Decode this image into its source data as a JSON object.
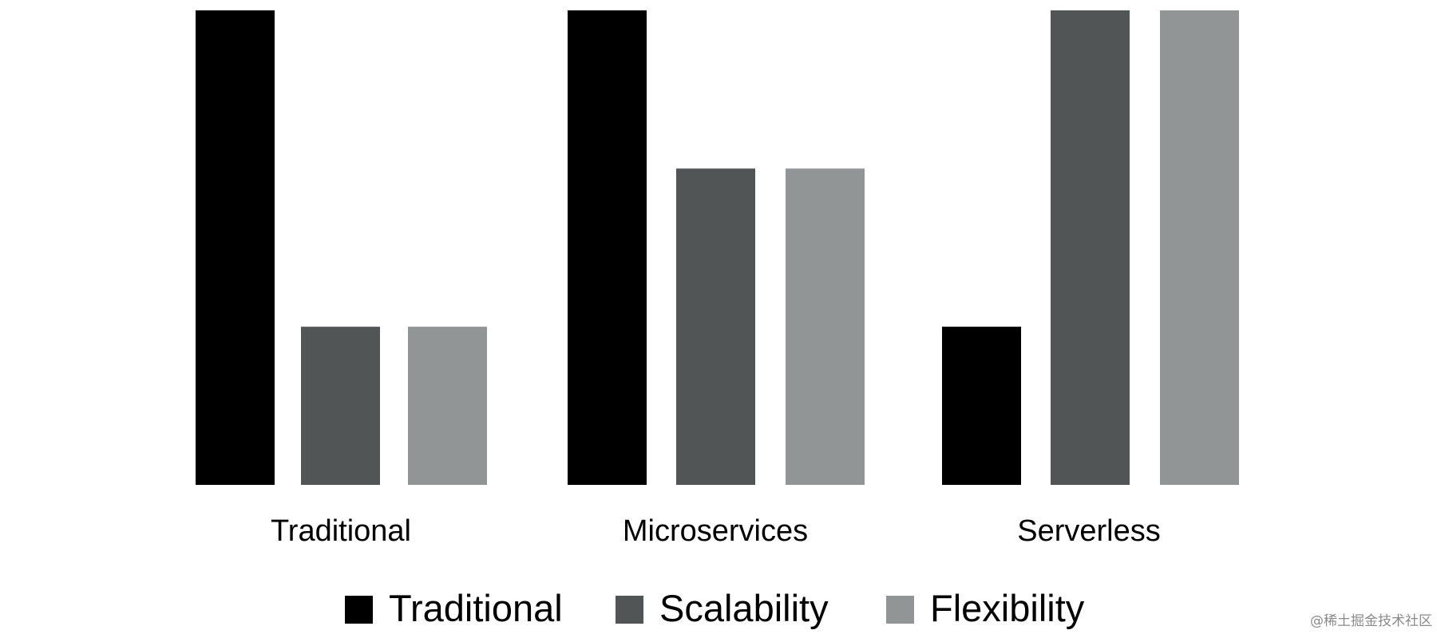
{
  "chart_data": {
    "type": "bar",
    "title": "",
    "xlabel": "",
    "ylabel": "",
    "ylim": [
      0,
      3
    ],
    "grid": false,
    "legend_position": "bottom",
    "categories": [
      "Traditional",
      "Microservices",
      "Serverless"
    ],
    "series": [
      {
        "name": "Traditional",
        "color": "#000000",
        "values": [
          3,
          3,
          1
        ]
      },
      {
        "name": "Scalability",
        "color": "#515555",
        "values": [
          1,
          2,
          3
        ]
      },
      {
        "name": "Flexibility",
        "color": "#929595",
        "values": [
          1,
          2,
          3
        ]
      }
    ]
  },
  "watermark": "@稀土掘金技术社区"
}
